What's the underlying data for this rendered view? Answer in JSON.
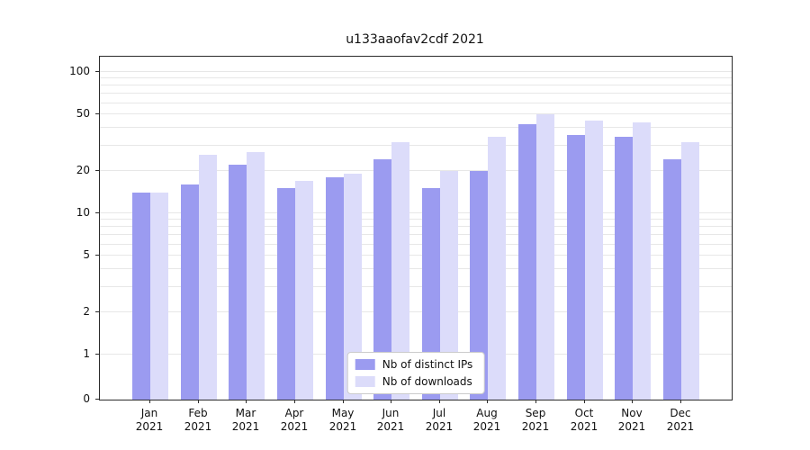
{
  "title": "u133aaofav2cdf 2021",
  "chart_data": {
    "type": "bar",
    "categories": [
      "Jan",
      "Feb",
      "Mar",
      "Apr",
      "May",
      "Jun",
      "Jul",
      "Aug",
      "Sep",
      "Oct",
      "Nov",
      "Dec"
    ],
    "category_year": "2021",
    "series": [
      {
        "name": "Nb of distinct IPs",
        "color": "#9b9bf0",
        "values": [
          14,
          16,
          22,
          15,
          18,
          24,
          15,
          20,
          43,
          36,
          35,
          24
        ]
      },
      {
        "name": "Nb of downloads",
        "color": "#dcdcfa",
        "values": [
          14,
          26,
          27,
          17,
          19,
          32,
          20,
          35,
          50,
          45,
          44,
          32
        ]
      }
    ],
    "xlabel": "",
    "ylabel": "",
    "scale": "symlog",
    "yticks": [
      0,
      1,
      2,
      5,
      10,
      20,
      50,
      100
    ],
    "gridlines": [
      1,
      2,
      3,
      4,
      5,
      6,
      7,
      8,
      9,
      10,
      20,
      30,
      40,
      50,
      60,
      70,
      80,
      90,
      100
    ],
    "ylim": [
      0,
      150
    ],
    "grid": "on",
    "legend_position": "lower center"
  }
}
